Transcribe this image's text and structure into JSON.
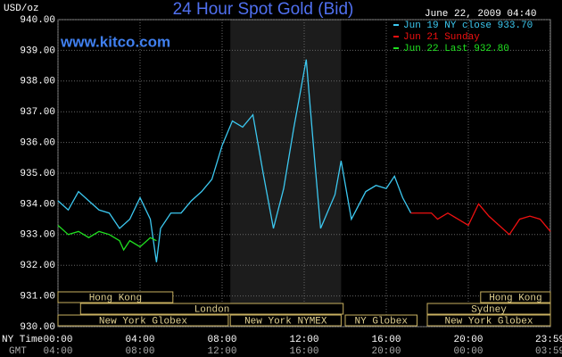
{
  "chart_data": {
    "type": "line",
    "title": "24 Hour Spot Gold (Bid)",
    "timestamp": "June 22, 2009 04:40",
    "watermark": "www.kitco.com",
    "y_label": "USD/oz",
    "x_row_labels": [
      "NY Time",
      "GMT"
    ],
    "xlim": [
      0,
      24
    ],
    "ylim": [
      930,
      940
    ],
    "grid": true,
    "yticks": [
      {
        "value": 930,
        "label": "930.00"
      },
      {
        "value": 931,
        "label": "931.00"
      },
      {
        "value": 932,
        "label": "932.00"
      },
      {
        "value": 933,
        "label": "933.00"
      },
      {
        "value": 934,
        "label": "934.00"
      },
      {
        "value": 935,
        "label": "935.00"
      },
      {
        "value": 936,
        "label": "936.00"
      },
      {
        "value": 937,
        "label": "937.00"
      },
      {
        "value": 938,
        "label": "938.00"
      },
      {
        "value": 939,
        "label": "939.00"
      },
      {
        "value": 940,
        "label": "940.00"
      }
    ],
    "xticks": [
      {
        "value": 0,
        "label": "00:00"
      },
      {
        "value": 4,
        "label": "04:00"
      },
      {
        "value": 8,
        "label": "08:00"
      },
      {
        "value": 12,
        "label": "12:00"
      },
      {
        "value": 16,
        "label": "16:00"
      },
      {
        "value": 20,
        "label": "20:00"
      },
      {
        "value": 23.98,
        "label": "23:59"
      }
    ],
    "gmt_ticks": [
      {
        "value": 0,
        "label": "04:00"
      },
      {
        "value": 4,
        "label": "08:00"
      },
      {
        "value": 8,
        "label": "12:00"
      },
      {
        "value": 12,
        "label": "16:00"
      },
      {
        "value": 16,
        "label": "20:00"
      },
      {
        "value": 20,
        "label": "00:00"
      },
      {
        "value": 23.98,
        "label": "03:59"
      }
    ],
    "series": [
      {
        "name": "Jun 19 NY close 933.70",
        "color": "#3cc8f0",
        "x": [
          0,
          0.5,
          1,
          1.5,
          2,
          2.5,
          3,
          3.5,
          4,
          4.5,
          4.8,
          5,
          5.5,
          6,
          6.5,
          7,
          7.5,
          8,
          8.5,
          9,
          9.5,
          10,
          10.5,
          11,
          11.5,
          12.1,
          12.5,
          12.8,
          13.5,
          13.8,
          14.3,
          15,
          15.5,
          16,
          16.4,
          16.8,
          17.2
        ],
        "values": [
          934.1,
          933.8,
          934.4,
          934.1,
          933.8,
          933.7,
          933.2,
          933.5,
          934.2,
          933.5,
          932.1,
          933.2,
          933.7,
          933.7,
          934.1,
          934.4,
          934.8,
          935.9,
          936.7,
          936.5,
          936.9,
          935.0,
          933.2,
          934.5,
          936.5,
          938.7,
          935.5,
          933.2,
          934.3,
          935.4,
          933.5,
          934.4,
          934.6,
          934.5,
          934.9,
          934.2,
          933.7
        ]
      },
      {
        "name": "Jun 21 Sunday",
        "color": "#f01010",
        "x": [
          17.2,
          18.2,
          18.5,
          19,
          19.5,
          20,
          20.5,
          21,
          21.5,
          22,
          22.5,
          23,
          23.5,
          24
        ],
        "values": [
          933.7,
          933.7,
          933.5,
          933.7,
          933.5,
          933.3,
          934.0,
          933.6,
          933.3,
          933.0,
          933.5,
          933.6,
          933.5,
          933.1
        ]
      },
      {
        "name": "Jun 22 Last 932.80",
        "color": "#20e020",
        "x": [
          0,
          0.5,
          1,
          1.5,
          2,
          2.5,
          3,
          3.2,
          3.5,
          4,
          4.5,
          4.8
        ],
        "values": [
          933.3,
          933.0,
          933.1,
          932.9,
          933.1,
          933.0,
          932.8,
          932.5,
          932.8,
          932.6,
          932.9,
          932.8
        ]
      }
    ],
    "sessions": [
      {
        "label": "Hong Kong",
        "start": 0,
        "end": 5.6,
        "row": 0
      },
      {
        "label": "Hong Kong",
        "start": 20.6,
        "end": 24,
        "row": 0
      },
      {
        "label": "London",
        "start": 1.1,
        "end": 13.9,
        "row": 1
      },
      {
        "label": "Sydney",
        "start": 18,
        "end": 24,
        "row": 1
      },
      {
        "label": "New York Globex",
        "start": 0,
        "end": 8.3,
        "row": 2
      },
      {
        "label": "New York NYMEX",
        "start": 8.4,
        "end": 13.8,
        "row": 2,
        "highlight": true
      },
      {
        "label": "NY Globex",
        "start": 14,
        "end": 17.5,
        "row": 2
      },
      {
        "label": "New York Globex",
        "start": 18,
        "end": 24,
        "row": 2
      }
    ]
  }
}
